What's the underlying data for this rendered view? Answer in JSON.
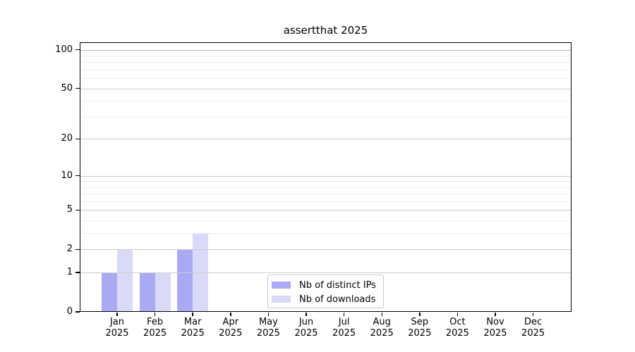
{
  "chart_data": {
    "type": "bar",
    "title": "assertthat 2025",
    "categories": [
      "Jan",
      "Feb",
      "Mar",
      "Apr",
      "May",
      "Jun",
      "Jul",
      "Aug",
      "Sep",
      "Oct",
      "Nov",
      "Dec"
    ],
    "category_year": "2025",
    "series": [
      {
        "name": "Nb of distinct IPs",
        "color": "#a9a9f4",
        "values": [
          1,
          1,
          2,
          0,
          0,
          0,
          0,
          0,
          0,
          0,
          0,
          0
        ]
      },
      {
        "name": "Nb of downloads",
        "color": "#d9d9f8",
        "values": [
          2,
          1,
          3,
          0,
          0,
          0,
          0,
          0,
          0,
          0,
          0,
          0
        ]
      }
    ],
    "xlabel": "",
    "ylabel": "",
    "y_scale": "log1p",
    "ylim": [
      0,
      100
    ],
    "y_ticks": [
      0,
      1,
      2,
      5,
      10,
      20,
      50,
      100
    ],
    "y_minor_gridlines": [
      3,
      4,
      6,
      7,
      8,
      9,
      30,
      40,
      60,
      70,
      80,
      90
    ],
    "grid": "horizontal",
    "legend_position": "bottom-center-inside",
    "colors": {
      "axis": "#000000",
      "top_gridline": "#bababa",
      "major_grid": "#cdcdcd",
      "minor_grid": "#ececec",
      "background": "#ffffff",
      "legend_border": "#c8c8c8",
      "text": "#000000"
    }
  }
}
